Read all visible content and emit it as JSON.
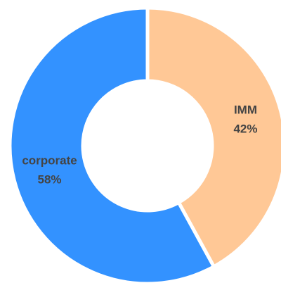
{
  "chart_data": {
    "type": "donut",
    "categories": [
      "IMM",
      "corporate"
    ],
    "values": [
      42,
      58
    ],
    "value_labels": [
      "42%",
      "58%"
    ],
    "colors": [
      "#ffc896",
      "#3392ff"
    ]
  }
}
